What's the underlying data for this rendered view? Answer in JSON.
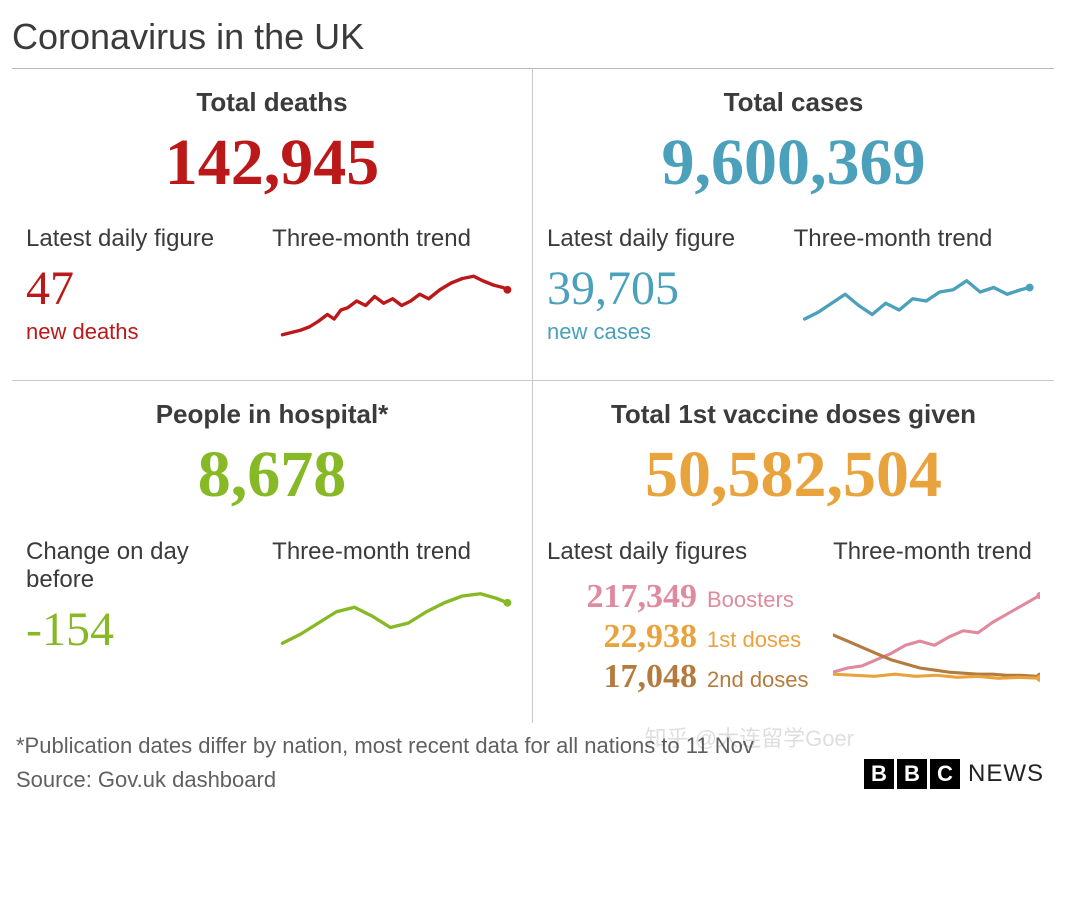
{
  "title": "Coronavirus in the UK",
  "colors": {
    "deaths": "#bb1919",
    "cases": "#4ba0bb",
    "hospital": "#87b825",
    "vaccine_primary": "#e8a33d",
    "boosters": "#e08a9f",
    "first_doses": "#e8a33d",
    "second_doses": "#b57b3e",
    "text": "#3b3b3b",
    "muted": "#606060",
    "rule": "#c8c8c8"
  },
  "panels": {
    "deaths": {
      "title": "Total deaths",
      "total": "142,945",
      "latest_label": "Latest daily figure",
      "latest_value": "47",
      "latest_caption": "new deaths",
      "trend_label": "Three-month trend",
      "trend": {
        "type": "line",
        "stroke": "#bb1919",
        "stroke_width": 3,
        "endpoint_dot": true,
        "points": [
          [
            0,
            62
          ],
          [
            8,
            60
          ],
          [
            16,
            58
          ],
          [
            24,
            55
          ],
          [
            32,
            50
          ],
          [
            40,
            44
          ],
          [
            46,
            48
          ],
          [
            52,
            40
          ],
          [
            58,
            38
          ],
          [
            66,
            32
          ],
          [
            74,
            36
          ],
          [
            82,
            28
          ],
          [
            90,
            34
          ],
          [
            98,
            30
          ],
          [
            106,
            36
          ],
          [
            114,
            32
          ],
          [
            122,
            26
          ],
          [
            130,
            30
          ],
          [
            140,
            22
          ],
          [
            150,
            16
          ],
          [
            160,
            12
          ],
          [
            170,
            10
          ],
          [
            178,
            14
          ],
          [
            188,
            18
          ],
          [
            196,
            20
          ],
          [
            200,
            22
          ]
        ]
      }
    },
    "cases": {
      "title": "Total cases",
      "total": "9,600,369",
      "latest_label": "Latest daily figure",
      "latest_value": "39,705",
      "latest_caption": "new cases",
      "trend_label": "Three-month trend",
      "trend": {
        "type": "line",
        "stroke": "#4ba0bb",
        "stroke_width": 3,
        "endpoint_dot": true,
        "points": [
          [
            0,
            48
          ],
          [
            12,
            42
          ],
          [
            24,
            34
          ],
          [
            36,
            26
          ],
          [
            48,
            36
          ],
          [
            60,
            44
          ],
          [
            72,
            34
          ],
          [
            84,
            40
          ],
          [
            96,
            30
          ],
          [
            108,
            32
          ],
          [
            120,
            24
          ],
          [
            132,
            22
          ],
          [
            144,
            14
          ],
          [
            156,
            24
          ],
          [
            168,
            20
          ],
          [
            180,
            26
          ],
          [
            192,
            22
          ],
          [
            200,
            20
          ]
        ]
      }
    },
    "hospital": {
      "title": "People in hospital*",
      "total": "8,678",
      "latest_label": "Change on day before",
      "latest_value": "-154",
      "trend_label": "Three-month trend",
      "trend": {
        "type": "line",
        "stroke": "#87b825",
        "stroke_width": 3,
        "endpoint_dot": true,
        "points": [
          [
            0,
            58
          ],
          [
            16,
            50
          ],
          [
            32,
            40
          ],
          [
            48,
            30
          ],
          [
            64,
            26
          ],
          [
            80,
            34
          ],
          [
            96,
            44
          ],
          [
            112,
            40
          ],
          [
            128,
            30
          ],
          [
            144,
            22
          ],
          [
            160,
            16
          ],
          [
            176,
            14
          ],
          [
            190,
            18
          ],
          [
            200,
            22
          ]
        ]
      }
    },
    "vaccines": {
      "title": "Total 1st vaccine doses given",
      "total": "50,582,504",
      "latest_label": "Latest daily figures",
      "trend_label": "Three-month trend",
      "breakdown": [
        {
          "value": "217,349",
          "label": "Boosters",
          "color": "#e08a9f"
        },
        {
          "value": "22,938",
          "label": "1st doses",
          "color": "#e8a33d"
        },
        {
          "value": "17,048",
          "label": "2nd doses",
          "color": "#b57b3e"
        }
      ],
      "trends": [
        {
          "stroke": "#e08a9f",
          "stroke_width": 3,
          "endpoint_dot": true,
          "points": [
            [
              0,
              78
            ],
            [
              14,
              74
            ],
            [
              28,
              72
            ],
            [
              42,
              66
            ],
            [
              56,
              60
            ],
            [
              70,
              52
            ],
            [
              84,
              48
            ],
            [
              98,
              52
            ],
            [
              112,
              44
            ],
            [
              126,
              38
            ],
            [
              140,
              40
            ],
            [
              154,
              30
            ],
            [
              168,
              22
            ],
            [
              182,
              14
            ],
            [
              196,
              6
            ],
            [
              200,
              4
            ]
          ]
        },
        {
          "stroke": "#b57b3e",
          "stroke_width": 3,
          "endpoint_dot": true,
          "points": [
            [
              0,
              42
            ],
            [
              14,
              48
            ],
            [
              28,
              54
            ],
            [
              42,
              60
            ],
            [
              56,
              66
            ],
            [
              70,
              70
            ],
            [
              84,
              74
            ],
            [
              98,
              76
            ],
            [
              112,
              78
            ],
            [
              126,
              79
            ],
            [
              140,
              80
            ],
            [
              154,
              80
            ],
            [
              168,
              81
            ],
            [
              182,
              81
            ],
            [
              196,
              82
            ],
            [
              200,
              82
            ]
          ]
        },
        {
          "stroke": "#e8a33d",
          "stroke_width": 3,
          "endpoint_dot": true,
          "points": [
            [
              0,
              80
            ],
            [
              20,
              81
            ],
            [
              40,
              82
            ],
            [
              60,
              80
            ],
            [
              80,
              82
            ],
            [
              100,
              81
            ],
            [
              120,
              83
            ],
            [
              140,
              82
            ],
            [
              160,
              84
            ],
            [
              180,
              83
            ],
            [
              200,
              84
            ]
          ]
        }
      ]
    }
  },
  "footer": {
    "note": "*Publication dates differ by nation, most recent data for all nations to 11 Nov",
    "source": "Source: Gov.uk dashboard",
    "brand_letters": [
      "B",
      "B",
      "C"
    ],
    "brand_word": "NEWS"
  },
  "watermark": "知乎 @大连留学Goer"
}
